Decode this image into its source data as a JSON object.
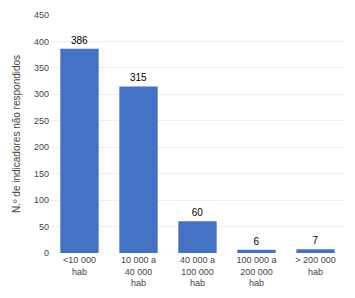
{
  "chart_data": {
    "type": "bar",
    "categories": [
      "<10 000\nhab",
      "10 000 a\n40 000\nhab",
      "40 000 a\n100 000\nhab",
      "100 000 a\n200 000\nhab",
      "> 200 000\nhab"
    ],
    "values": [
      386,
      315,
      60,
      6,
      7
    ],
    "color": "#4472C4",
    "ylabel": "N.º de indicadores não respondidos",
    "ylim": [
      0,
      450
    ],
    "yticks": [
      0,
      50,
      100,
      150,
      200,
      250,
      300,
      350,
      400,
      450
    ],
    "grid": true,
    "data_labels": true
  }
}
